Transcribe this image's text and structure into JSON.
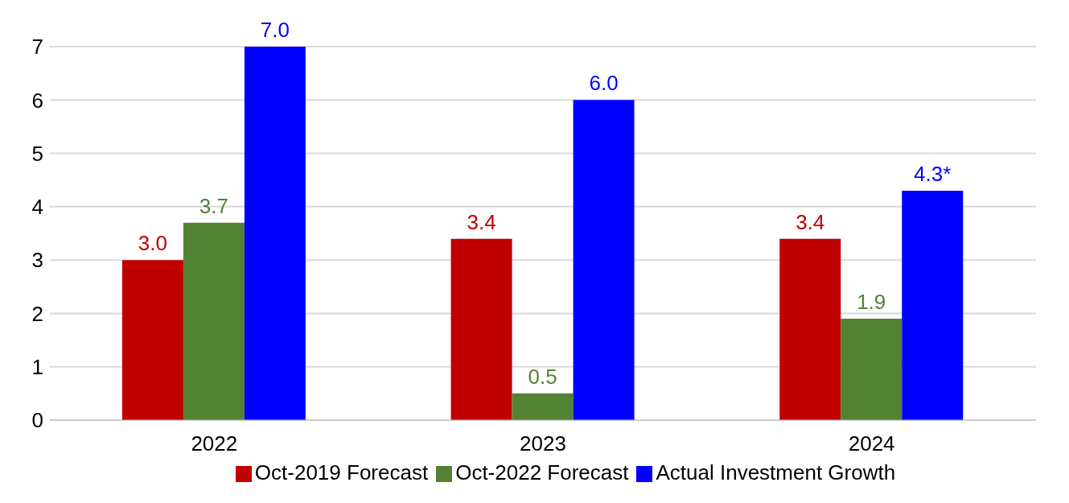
{
  "chart_data": {
    "type": "bar",
    "categories": [
      "2022",
      "2023",
      "2024"
    ],
    "series": [
      {
        "name": "Oct-2019 Forecast",
        "color": "#c00000",
        "values": [
          3.0,
          3.4,
          3.4
        ],
        "value_labels": [
          "3.0",
          "3.4",
          "3.4"
        ]
      },
      {
        "name": "Oct-2022 Forecast",
        "color": "#548235",
        "values": [
          3.7,
          0.5,
          1.9
        ],
        "value_labels": [
          "3.7",
          "0.5",
          "1.9"
        ]
      },
      {
        "name": "Actual Investment Growth",
        "color": "#0000ff",
        "values": [
          7.0,
          6.0,
          4.3
        ],
        "value_labels": [
          "7.0",
          "6.0",
          "4.3*"
        ]
      }
    ],
    "ylim": [
      0,
      7
    ],
    "yticks": [
      0,
      1,
      2,
      3,
      4,
      5,
      6,
      7
    ],
    "grid": "y",
    "legend": "bottom"
  }
}
